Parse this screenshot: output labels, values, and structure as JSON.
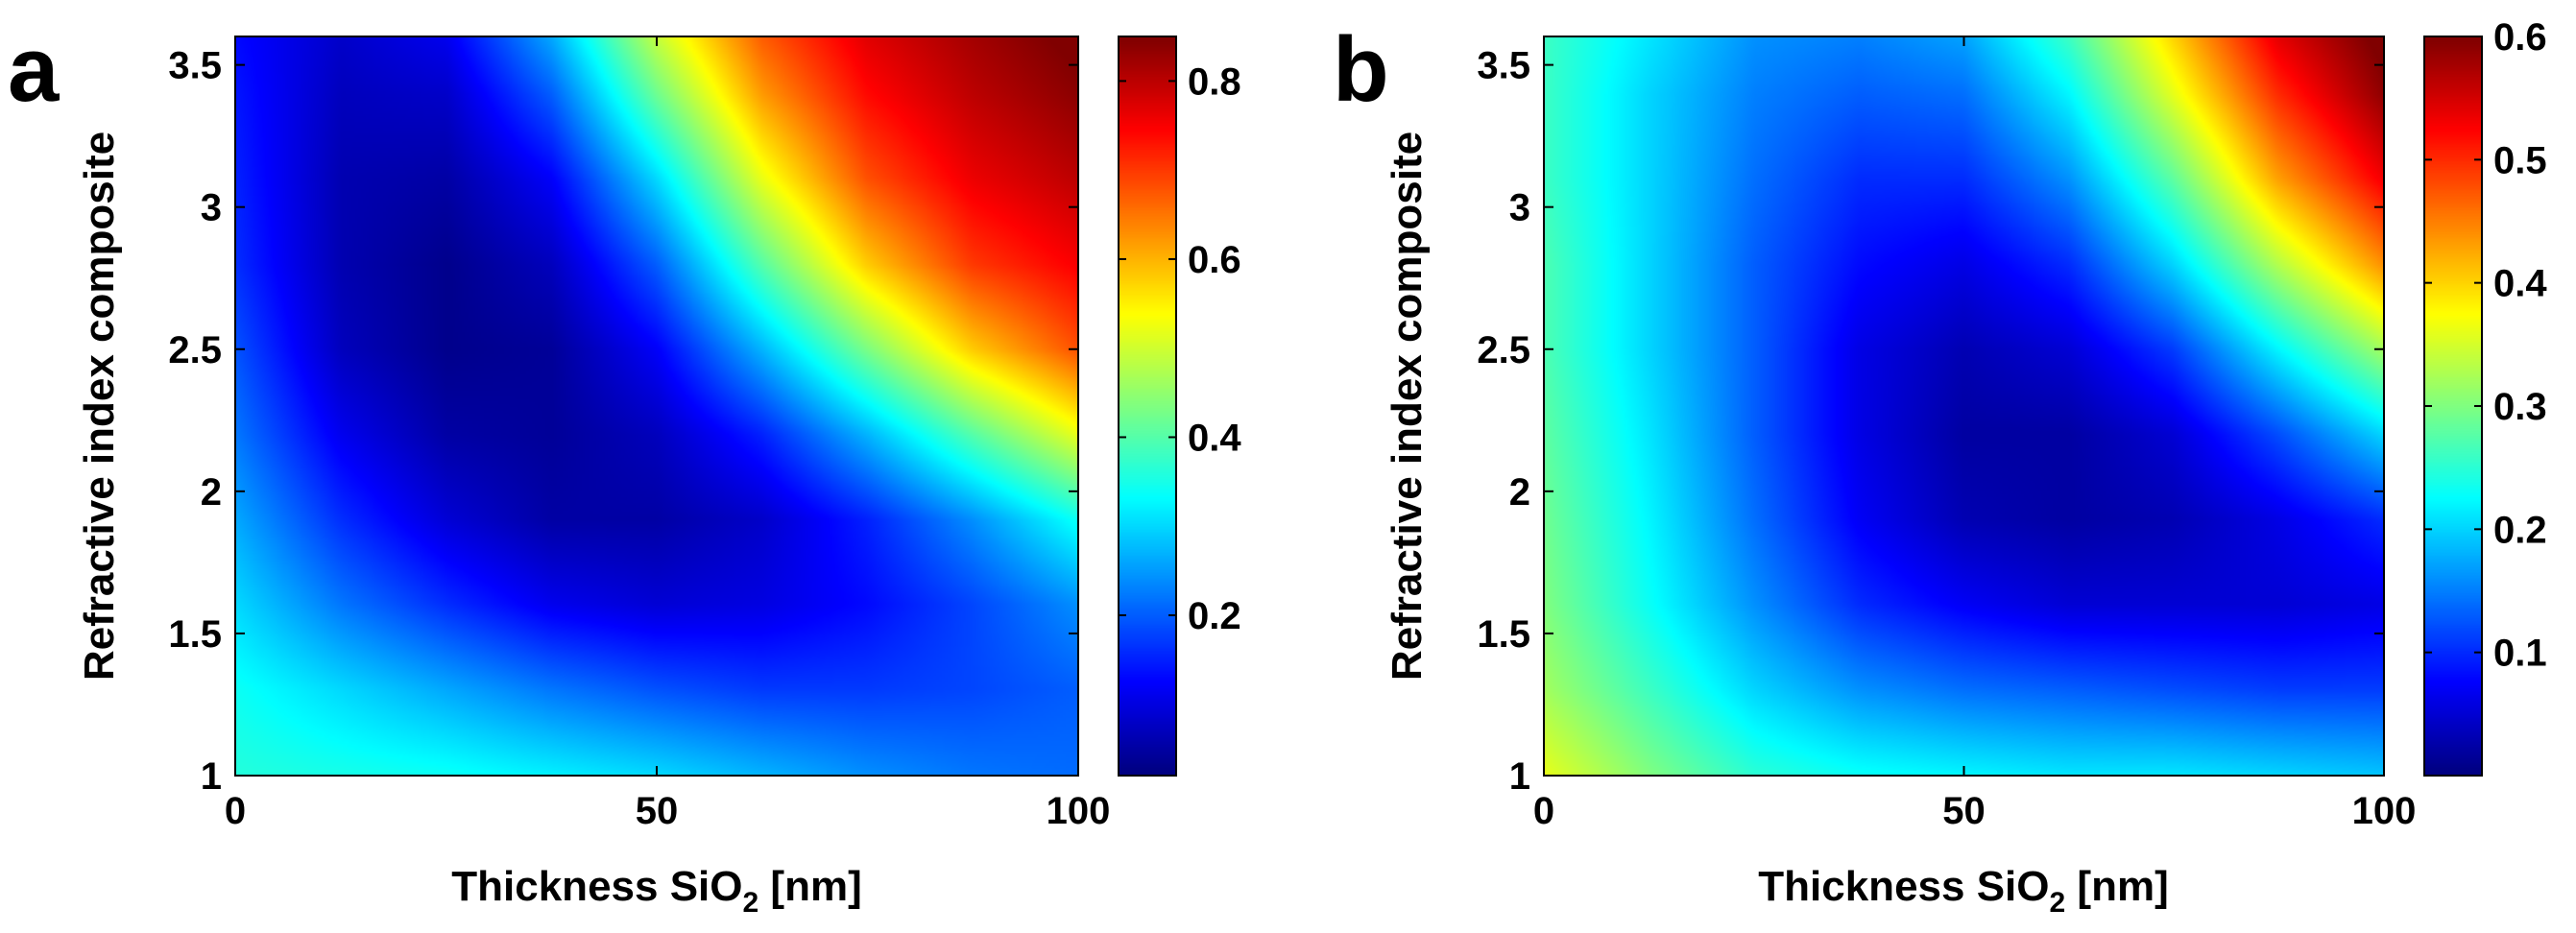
{
  "chart_data": [
    {
      "type": "heatmap",
      "panel_label": "a",
      "xlabel": "Thickness SiO",
      "xlabel_sub": "2",
      "xlabel_unit": " [nm]",
      "ylabel": "Refractive index composite",
      "xlim": [
        0,
        100
      ],
      "ylim": [
        1,
        3.6
      ],
      "xticks": [
        0,
        50,
        100
      ],
      "xtick_labels": [
        "0",
        "50",
        "100"
      ],
      "yticks": [
        1,
        1.5,
        2,
        2.5,
        3,
        3.5
      ],
      "ytick_labels": [
        "1",
        "1.5",
        "2",
        "2.5",
        "3",
        "3.5"
      ],
      "colormap": "jet",
      "colorbar": {
        "min": 0.02,
        "max": 0.85,
        "ticks": [
          0.2,
          0.4,
          0.6,
          0.8
        ],
        "tick_labels": [
          "0.2",
          "0.4",
          "0.6",
          "0.8"
        ]
      },
      "z_grid": {
        "x": [
          0,
          12.5,
          25,
          37.5,
          50,
          62.5,
          75,
          87.5,
          100
        ],
        "y": [
          1,
          1.3,
          1.6,
          1.9,
          2.2,
          2.5,
          2.8,
          3.1,
          3.4,
          3.6
        ],
        "z": [
          [
            0.36,
            0.35,
            0.34,
            0.32,
            0.3,
            0.27,
            0.24,
            0.22,
            0.21
          ],
          [
            0.34,
            0.3,
            0.26,
            0.22,
            0.19,
            0.17,
            0.17,
            0.18,
            0.2
          ],
          [
            0.3,
            0.22,
            0.16,
            0.11,
            0.09,
            0.1,
            0.13,
            0.18,
            0.24
          ],
          [
            0.26,
            0.16,
            0.09,
            0.05,
            0.05,
            0.08,
            0.15,
            0.24,
            0.34
          ],
          [
            0.22,
            0.11,
            0.05,
            0.04,
            0.07,
            0.15,
            0.27,
            0.4,
            0.52
          ],
          [
            0.19,
            0.07,
            0.03,
            0.04,
            0.12,
            0.27,
            0.43,
            0.58,
            0.68
          ],
          [
            0.16,
            0.06,
            0.03,
            0.07,
            0.2,
            0.4,
            0.58,
            0.7,
            0.75
          ],
          [
            0.15,
            0.06,
            0.05,
            0.12,
            0.3,
            0.52,
            0.68,
            0.76,
            0.8
          ],
          [
            0.14,
            0.07,
            0.08,
            0.2,
            0.42,
            0.62,
            0.74,
            0.8,
            0.84
          ],
          [
            0.13,
            0.08,
            0.11,
            0.26,
            0.49,
            0.67,
            0.77,
            0.82,
            0.86
          ]
        ]
      }
    },
    {
      "type": "heatmap",
      "panel_label": "b",
      "xlabel": "Thickness SiO",
      "xlabel_sub": "2",
      "xlabel_unit": " [nm]",
      "ylabel": "Refractive index composite",
      "xlim": [
        0,
        100
      ],
      "ylim": [
        1,
        3.6
      ],
      "xticks": [
        0,
        50,
        100
      ],
      "xtick_labels": [
        "0",
        "50",
        "100"
      ],
      "yticks": [
        1,
        1.5,
        2,
        2.5,
        3,
        3.5
      ],
      "ytick_labels": [
        "1",
        "1.5",
        "2",
        "2.5",
        "3",
        "3.5"
      ],
      "colormap": "jet",
      "colorbar": {
        "min": 0.0,
        "max": 0.6,
        "ticks": [
          0.1,
          0.2,
          0.3,
          0.4,
          0.5,
          0.6
        ],
        "tick_labels": [
          "0.1",
          "0.2",
          "0.3",
          "0.4",
          "0.5",
          "0.6"
        ]
      },
      "z_grid": {
        "x": [
          0,
          12.5,
          25,
          37.5,
          50,
          62.5,
          75,
          87.5,
          100
        ],
        "y": [
          1,
          1.3,
          1.6,
          1.9,
          2.2,
          2.5,
          2.8,
          3.1,
          3.4,
          3.6
        ],
        "z": [
          [
            0.36,
            0.3,
            0.25,
            0.23,
            0.22,
            0.21,
            0.21,
            0.2,
            0.19
          ],
          [
            0.32,
            0.26,
            0.2,
            0.16,
            0.14,
            0.13,
            0.12,
            0.11,
            0.11
          ],
          [
            0.3,
            0.23,
            0.16,
            0.1,
            0.07,
            0.05,
            0.05,
            0.05,
            0.06
          ],
          [
            0.29,
            0.22,
            0.14,
            0.07,
            0.03,
            0.02,
            0.03,
            0.06,
            0.1
          ],
          [
            0.28,
            0.21,
            0.13,
            0.06,
            0.02,
            0.02,
            0.05,
            0.12,
            0.2
          ],
          [
            0.27,
            0.2,
            0.13,
            0.06,
            0.03,
            0.05,
            0.11,
            0.22,
            0.32
          ],
          [
            0.27,
            0.2,
            0.13,
            0.08,
            0.06,
            0.1,
            0.2,
            0.33,
            0.44
          ],
          [
            0.26,
            0.2,
            0.14,
            0.1,
            0.1,
            0.16,
            0.28,
            0.43,
            0.53
          ],
          [
            0.26,
            0.2,
            0.15,
            0.13,
            0.14,
            0.22,
            0.36,
            0.5,
            0.59
          ],
          [
            0.26,
            0.21,
            0.16,
            0.15,
            0.17,
            0.26,
            0.4,
            0.54,
            0.61
          ]
        ]
      }
    }
  ]
}
